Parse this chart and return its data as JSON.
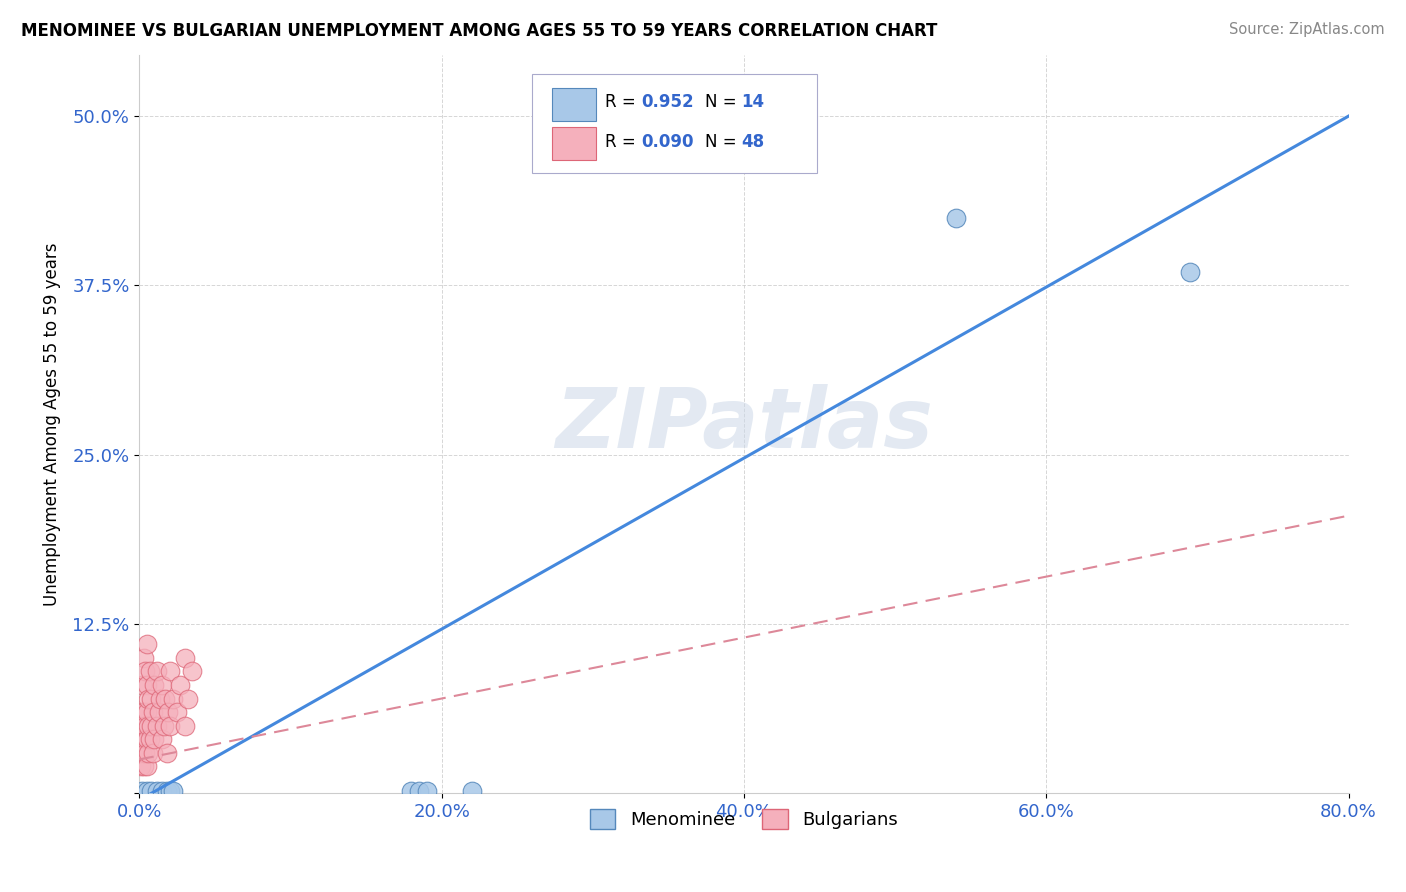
{
  "title": "MENOMINEE VS BULGARIAN UNEMPLOYMENT AMONG AGES 55 TO 59 YEARS CORRELATION CHART",
  "source": "Source: ZipAtlas.com",
  "xlabel": "",
  "ylabel": "Unemployment Among Ages 55 to 59 years",
  "xlim": [
    0.0,
    0.8
  ],
  "ylim": [
    0.0,
    0.545
  ],
  "xticks": [
    0.0,
    0.2,
    0.4,
    0.6,
    0.8
  ],
  "yticks": [
    0.0,
    0.125,
    0.25,
    0.375,
    0.5
  ],
  "xtick_labels": [
    "0.0%",
    "20.0%",
    "40.0%",
    "60.0%",
    "80.0%"
  ],
  "ytick_labels": [
    "",
    "12.5%",
    "25.0%",
    "37.5%",
    "50.0%"
  ],
  "menominee_color": "#a8c8e8",
  "bulgarian_color": "#f5b0bc",
  "menominee_edge": "#5588bb",
  "bulgarian_edge": "#dd6677",
  "line_blue": "#4488dd",
  "line_pink": "#dd8899",
  "legend_R1": "0.952",
  "legend_N1": "14",
  "legend_R2": "0.090",
  "legend_N2": "48",
  "watermark": "ZIPatlas",
  "blue_line_x0": 0.0,
  "blue_line_y0": -0.005,
  "blue_line_x1": 0.8,
  "blue_line_y1": 0.5,
  "pink_line_x0": 0.0,
  "pink_line_y0": 0.025,
  "pink_line_x1": 0.8,
  "pink_line_y1": 0.205,
  "menominee_x": [
    0.002,
    0.005,
    0.008,
    0.012,
    0.015,
    0.018,
    0.02,
    0.022,
    0.18,
    0.185,
    0.19,
    0.22,
    0.54,
    0.695
  ],
  "menominee_y": [
    0.002,
    0.002,
    0.002,
    0.002,
    0.002,
    0.002,
    0.002,
    0.002,
    0.002,
    0.002,
    0.002,
    0.002,
    0.425,
    0.385
  ],
  "bulgarian_x": [
    0.001,
    0.001,
    0.001,
    0.002,
    0.002,
    0.002,
    0.003,
    0.003,
    0.003,
    0.003,
    0.004,
    0.004,
    0.004,
    0.005,
    0.005,
    0.005,
    0.005,
    0.005,
    0.006,
    0.006,
    0.006,
    0.007,
    0.007,
    0.008,
    0.008,
    0.009,
    0.009,
    0.01,
    0.01,
    0.012,
    0.012,
    0.013,
    0.014,
    0.015,
    0.015,
    0.016,
    0.017,
    0.018,
    0.019,
    0.02,
    0.02,
    0.022,
    0.025,
    0.027,
    0.03,
    0.03,
    0.032,
    0.035
  ],
  "bulgarian_y": [
    0.02,
    0.04,
    0.06,
    0.03,
    0.05,
    0.08,
    0.02,
    0.04,
    0.06,
    0.1,
    0.03,
    0.05,
    0.09,
    0.02,
    0.04,
    0.06,
    0.08,
    0.11,
    0.03,
    0.05,
    0.07,
    0.04,
    0.09,
    0.05,
    0.07,
    0.03,
    0.06,
    0.04,
    0.08,
    0.05,
    0.09,
    0.06,
    0.07,
    0.04,
    0.08,
    0.05,
    0.07,
    0.03,
    0.06,
    0.05,
    0.09,
    0.07,
    0.06,
    0.08,
    0.05,
    0.1,
    0.07,
    0.09
  ]
}
